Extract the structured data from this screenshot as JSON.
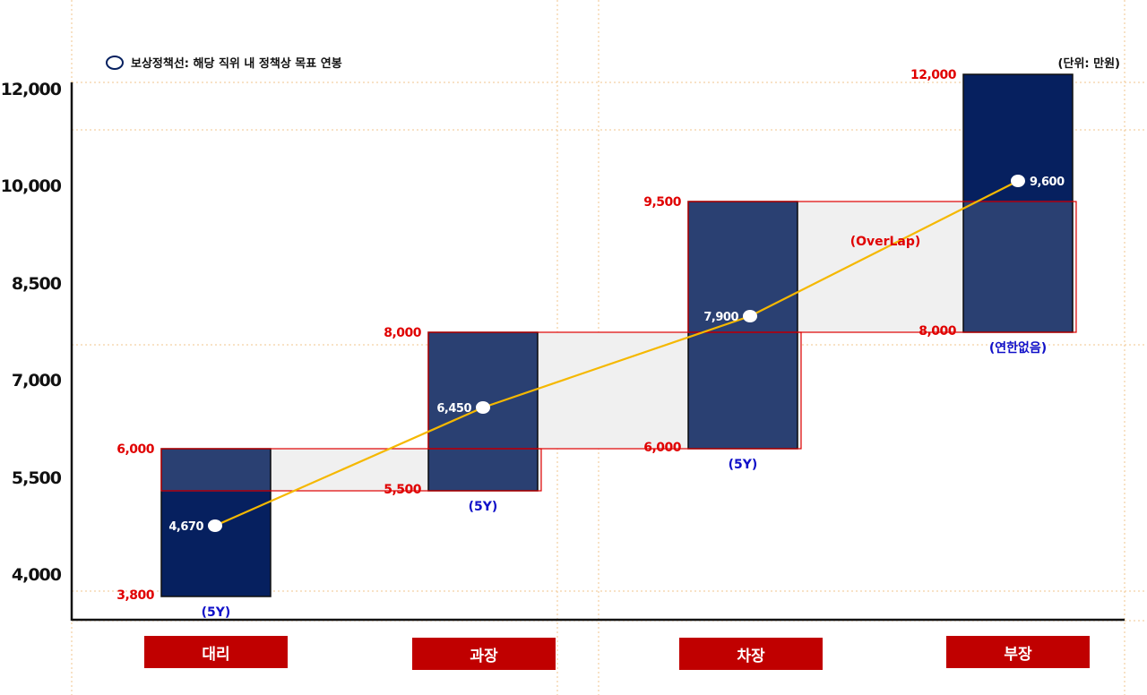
{
  "legend": {
    "text": "보상정책선: 해당 직위 내 정책상 목표 연봉"
  },
  "unit": "(단위: 만원)",
  "overlap_label": "(OverLap)",
  "colors": {
    "bar": "#06205f",
    "overlap_fill": "#2a4072",
    "band_fill": "#f0f0f0",
    "band_border": "#e00000",
    "policy_line": "#f5b800",
    "grid": "#f2c48c",
    "category": "#c00000"
  },
  "chart_data": {
    "type": "bar",
    "subtype": "floating-range",
    "categories": [
      "대리",
      "과장",
      "차장",
      "부장"
    ],
    "y_ticks": [
      "4,000",
      "5,500",
      "7,000",
      "8,500",
      "10,000",
      "12,000"
    ],
    "ranges": [
      {
        "category": "대리",
        "min": 3800,
        "max": 6000,
        "min_label": "3,800",
        "max_label": "6,000",
        "note": "(5Y)"
      },
      {
        "category": "과장",
        "min": 5500,
        "max": 8000,
        "min_label": "5,500",
        "max_label": "8,000",
        "note": "(5Y)"
      },
      {
        "category": "차장",
        "min": 6000,
        "max": 9500,
        "min_label": "6,000",
        "max_label": "9,500",
        "note": "(5Y)"
      },
      {
        "category": "부장",
        "min": 8000,
        "max": 12000,
        "min_label": "8,000",
        "max_label": "12,000",
        "note": "(연한없음)"
      }
    ],
    "policy_line": {
      "values": [
        4670,
        6450,
        7900,
        9600
      ],
      "labels": [
        "4,670",
        "6,450",
        "7,900",
        "9,600"
      ]
    },
    "overlaps": [
      {
        "from": "대리",
        "to": "과장",
        "min": 5500,
        "max": 6000
      },
      {
        "from": "과장",
        "to": "차장",
        "min": 6000,
        "max": 8000
      },
      {
        "from": "차장",
        "to": "부장",
        "min": 8000,
        "max": 9500
      }
    ]
  }
}
